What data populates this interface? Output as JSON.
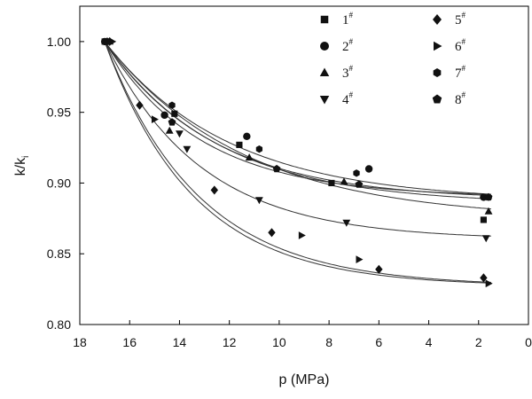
{
  "chart_data": {
    "type": "scatter",
    "title": "",
    "xlabel": "p (MPa)",
    "ylabel_main": "k/k",
    "ylabel_sub": "i",
    "xlim": [
      18,
      0
    ],
    "ylim": [
      0.8,
      1.025
    ],
    "x_ticks": [
      "18",
      "16",
      "14",
      "12",
      "10",
      "8",
      "6",
      "4",
      "2",
      "0"
    ],
    "x_tick_values": [
      18,
      16,
      14,
      12,
      10,
      8,
      6,
      4,
      2,
      0
    ],
    "y_ticks": [
      "0.80",
      "0.85",
      "0.90",
      "0.95",
      "1.00"
    ],
    "y_tick_values": [
      0.8,
      0.85,
      0.9,
      0.95,
      1.0
    ],
    "legend_position": "top-right",
    "series": [
      {
        "name": "1",
        "sup": "#",
        "marker": "square",
        "points": [
          [
            17.0,
            1.0
          ],
          [
            14.2,
            0.949
          ],
          [
            11.6,
            0.927
          ],
          [
            7.9,
            0.9
          ],
          [
            1.8,
            0.874
          ]
        ],
        "fit": {
          "a": 0.887,
          "b": 0.113,
          "c": 0.2
        }
      },
      {
        "name": "2",
        "sup": "#",
        "marker": "circle",
        "points": [
          [
            17.0,
            1.0
          ],
          [
            14.6,
            0.948
          ],
          [
            11.3,
            0.933
          ],
          [
            6.4,
            0.91
          ],
          [
            1.8,
            0.89
          ]
        ],
        "fit": {
          "a": 0.888,
          "b": 0.112,
          "c": 0.23
        }
      },
      {
        "name": "3",
        "sup": "#",
        "marker": "triangle-up",
        "points": [
          [
            16.8,
            1.0
          ],
          [
            14.4,
            0.937
          ],
          [
            11.2,
            0.918
          ],
          [
            7.4,
            0.901
          ],
          [
            1.6,
            0.88
          ]
        ],
        "fit": {
          "a": 0.874,
          "b": 0.126,
          "c": 0.18
        }
      },
      {
        "name": "4",
        "sup": "#",
        "marker": "triangle-down",
        "points": [
          [
            16.9,
            1.0
          ],
          [
            14.0,
            0.935
          ],
          [
            13.7,
            0.924
          ],
          [
            10.8,
            0.888
          ],
          [
            7.3,
            0.872
          ],
          [
            1.7,
            0.861
          ]
        ],
        "fit": {
          "a": 0.86,
          "b": 0.14,
          "c": 0.26
        }
      },
      {
        "name": "5",
        "sup": "#",
        "marker": "diamond",
        "points": [
          [
            16.8,
            1.0
          ],
          [
            15.6,
            0.955
          ],
          [
            12.6,
            0.895
          ],
          [
            10.3,
            0.865
          ],
          [
            6.0,
            0.839
          ],
          [
            1.8,
            0.833
          ]
        ],
        "fit": {
          "a": 0.827,
          "b": 0.173,
          "c": 0.28
        }
      },
      {
        "name": "6",
        "sup": "#",
        "marker": "triangle-right",
        "points": [
          [
            16.7,
            1.0
          ],
          [
            15.0,
            0.945
          ],
          [
            9.1,
            0.863
          ],
          [
            6.8,
            0.846
          ],
          [
            1.6,
            0.829
          ]
        ],
        "fit": {
          "a": 0.827,
          "b": 0.173,
          "c": 0.265
        }
      },
      {
        "name": "7",
        "sup": "#",
        "marker": "hexagon",
        "points": [
          [
            16.8,
            1.0
          ],
          [
            14.3,
            0.955
          ],
          [
            10.8,
            0.924
          ],
          [
            6.9,
            0.907
          ],
          [
            1.6,
            0.89
          ]
        ],
        "fit": {
          "a": 0.89,
          "b": 0.11,
          "c": 0.26
        }
      },
      {
        "name": "8",
        "sup": "#",
        "marker": "pentagon",
        "points": [
          [
            16.9,
            1.0
          ],
          [
            14.3,
            0.943
          ],
          [
            10.1,
            0.91
          ],
          [
            6.8,
            0.899
          ],
          [
            1.6,
            0.89
          ]
        ],
        "fit": {
          "a": 0.885,
          "b": 0.115,
          "c": 0.22
        }
      }
    ]
  }
}
